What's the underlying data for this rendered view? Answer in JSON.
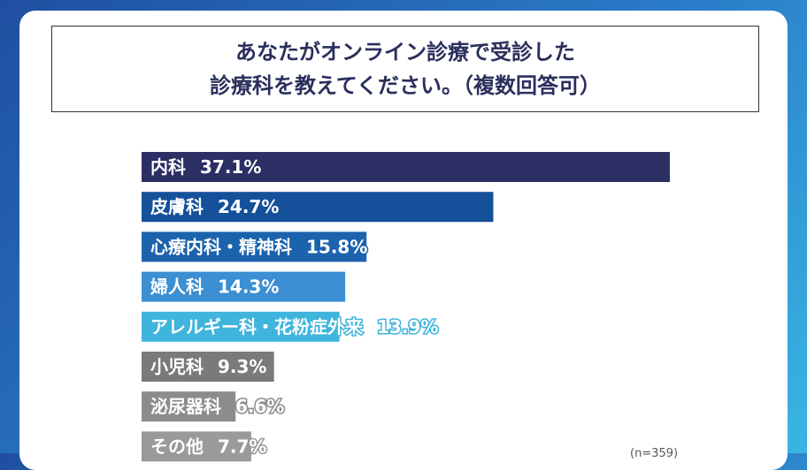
{
  "chart_data": {
    "type": "bar",
    "orientation": "horizontal",
    "title_lines": [
      "あなたがオンライン診療で受診した",
      "診療科を教えてください。（複数回答可）"
    ],
    "categories": [
      "内科",
      "皮膚科",
      "心療内科・精神科",
      "婦人科",
      "アレルギー科・花粉症外来",
      "小児科",
      "泌尿器科",
      "その他"
    ],
    "values": [
      37.1,
      24.7,
      15.8,
      14.3,
      13.9,
      9.3,
      6.6,
      7.7
    ],
    "value_labels": [
      "37.1%",
      "24.7%",
      "15.8%",
      "14.3%",
      "13.9%",
      "9.3%",
      "6.6%",
      "7.7%"
    ],
    "colors": [
      "#2b2f63",
      "#15509a",
      "#1c63ad",
      "#3b8fd2",
      "#3fb4dc",
      "#7a7a7a",
      "#8c8c8c",
      "#9a9a9a"
    ],
    "sample_note": "(n=359)",
    "xlim": [
      0,
      40
    ]
  }
}
